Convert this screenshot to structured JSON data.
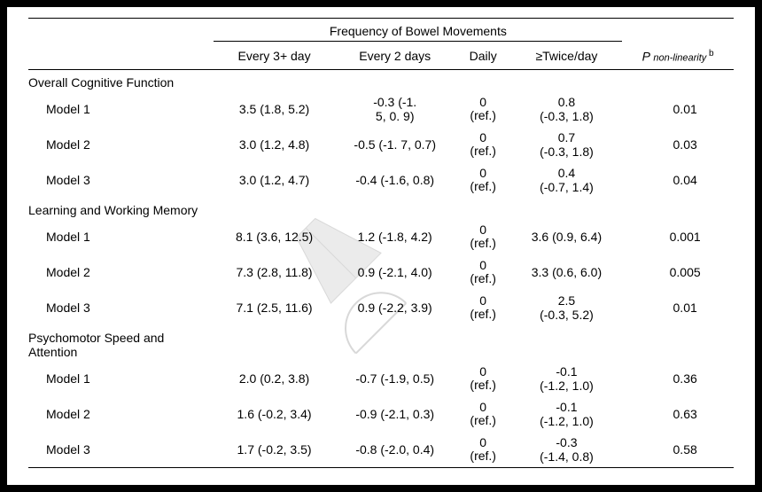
{
  "header": {
    "spanner": "Frequency of Bowel Movements",
    "cols": {
      "c1": "Every 3+ day",
      "c2": "Every 2 days",
      "c3": "Daily",
      "c4": "≥Twice/day",
      "p_prefix": "P ",
      "p_sub": "non-linearity",
      "p_sup": " b"
    }
  },
  "ref": {
    "zero": "0",
    "label": "(ref.)"
  },
  "sections": [
    {
      "title": "Overall Cognitive Function",
      "rows": [
        {
          "label": "Model 1",
          "c1": "3.5 (1.8, 5.2)",
          "c2": "-0.3 (-1. 5, 0. 9)",
          "c4": "0.8 (-0.3, 1.8)",
          "p": "0.01"
        },
        {
          "label": "Model 2",
          "c1": "3.0 (1.2, 4.8)",
          "c2": "-0.5 (-1. 7, 0.7)",
          "c4": "0.7 (-0.3, 1.8)",
          "p": "0.03"
        },
        {
          "label": "Model 3",
          "c1": "3.0 (1.2, 4.7)",
          "c2": "-0.4 (-1.6, 0.8)",
          "c4": "0.4 (-0.7, 1.4)",
          "p": "0.04"
        }
      ]
    },
    {
      "title": "Learning and Working Memory",
      "rows": [
        {
          "label": "Model 1",
          "c1": "8.1 (3.6, 12.5)",
          "c2": "1.2 (-1.8, 4.2)",
          "c4": "3.6 (0.9, 6.4)",
          "p": "0.001"
        },
        {
          "label": "Model 2",
          "c1": "7.3 (2.8, 11.8)",
          "c2": "0.9 (-2.1, 4.0)",
          "c4": "3.3 (0.6, 6.0)",
          "p": "0.005"
        },
        {
          "label": "Model 3",
          "c1": "7.1 (2.5, 11.6)",
          "c2": "0.9 (-2.2, 3.9)",
          "c4": "2.5 (-0.3, 5.2)",
          "p": "0.01"
        }
      ]
    },
    {
      "title": "Psychomotor Speed and Attention",
      "rows": [
        {
          "label": "Model 1",
          "c1": "2.0 (0.2, 3.8)",
          "c2": "-0.7 (-1.9, 0.5)",
          "c4": "-0.1 (-1.2, 1.0)",
          "p": "0.36"
        },
        {
          "label": "Model 2",
          "c1": "1.6 (-0.2, 3.4)",
          "c2": "-0.9 (-2.1, 0.3)",
          "c4": "-0.1 (-1.2, 1.0)",
          "p": "0.63"
        },
        {
          "label": "Model 3",
          "c1": "1.7 (-0.2, 3.5)",
          "c2": "-0.8 (-2.0, 0.4)",
          "c4": "-0.3 (-1.4, 0.8)",
          "p": "0.58"
        }
      ]
    }
  ],
  "wrap": {
    "c2": [
      0
    ],
    "c4": [
      0,
      1,
      2,
      5,
      6,
      7,
      8
    ]
  }
}
